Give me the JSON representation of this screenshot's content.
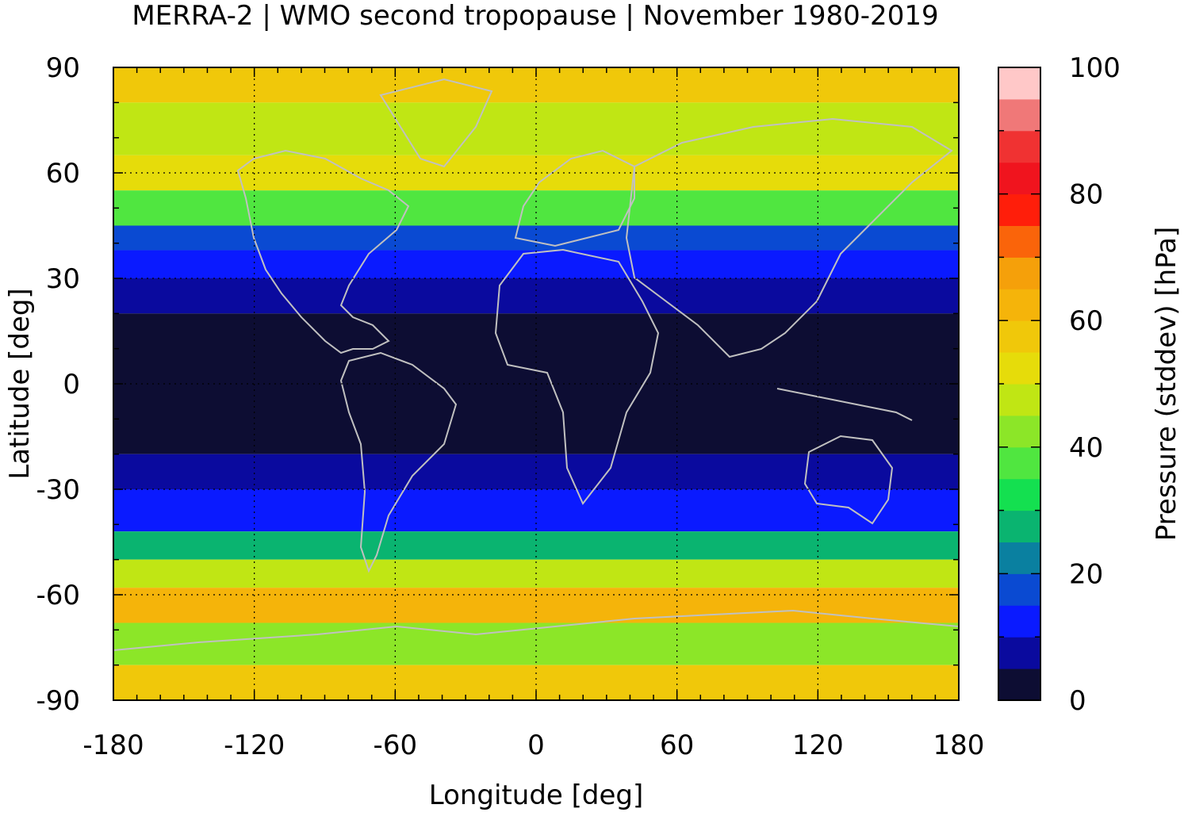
{
  "title": "MERRA-2 | WMO second tropopause | November 1980-2019",
  "map": {
    "x_label": "Longitude [deg]",
    "y_label": "Latitude [deg]",
    "x_range": [
      -180,
      180
    ],
    "y_range": [
      -90,
      90
    ],
    "x_ticks": [
      "-180",
      "-120",
      "-60",
      "0",
      "60",
      "120",
      "180"
    ],
    "y_ticks": [
      "90",
      "60",
      "30",
      "0",
      "-30",
      "-60",
      "-90"
    ],
    "x_tick_values": [
      -180,
      -120,
      -60,
      0,
      60,
      120,
      180
    ],
    "y_tick_values": [
      90,
      60,
      30,
      0,
      -30,
      -60,
      -90
    ],
    "grid": true,
    "coastline_color": "#c0c0c0",
    "latitude_bands": [
      {
        "lat_from": 90,
        "lat_to": 80,
        "value": 55
      },
      {
        "lat_from": 80,
        "lat_to": 65,
        "value": 45
      },
      {
        "lat_from": 65,
        "lat_to": 55,
        "value": 50
      },
      {
        "lat_from": 55,
        "lat_to": 45,
        "value": 35
      },
      {
        "lat_from": 45,
        "lat_to": 38,
        "value": 15
      },
      {
        "lat_from": 38,
        "lat_to": 30,
        "value": 12
      },
      {
        "lat_from": 30,
        "lat_to": 20,
        "value": 8
      },
      {
        "lat_from": 20,
        "lat_to": -20,
        "value": 3
      },
      {
        "lat_from": -20,
        "lat_to": -30,
        "value": 8
      },
      {
        "lat_from": -30,
        "lat_to": -42,
        "value": 12
      },
      {
        "lat_from": -42,
        "lat_to": -50,
        "value": 25
      },
      {
        "lat_from": -50,
        "lat_to": -58,
        "value": 45
      },
      {
        "lat_from": -58,
        "lat_to": -68,
        "value": 60
      },
      {
        "lat_from": -68,
        "lat_to": -80,
        "value": 40
      },
      {
        "lat_from": -80,
        "lat_to": -90,
        "value": 55
      }
    ]
  },
  "colorbar": {
    "label": "Pressure (stddev) [hPa]",
    "range": [
      0,
      100
    ],
    "ticks": [
      "100",
      "80",
      "60",
      "40",
      "20",
      "0"
    ],
    "tick_values": [
      100,
      80,
      60,
      40,
      20,
      0
    ],
    "colors": [
      "#0d0d33",
      "#0a0a9e",
      "#0a1aff",
      "#0a4ad2",
      "#0a80a0",
      "#0ab470",
      "#14e050",
      "#50e640",
      "#8ce628",
      "#c0e614",
      "#e6dc0a",
      "#f0c80a",
      "#f5b40a",
      "#f5a00a",
      "#fa640a",
      "#ff1e0a",
      "#f0141e",
      "#f03232",
      "#f07878",
      "#ffc8c8"
    ]
  }
}
